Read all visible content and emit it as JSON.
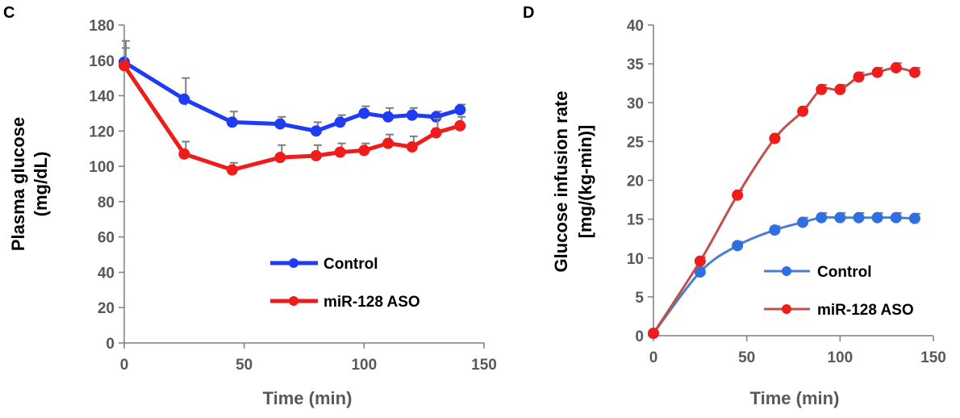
{
  "chart_data": [
    {
      "panel": "C",
      "type": "line",
      "ylabel": [
        "Plasma glucose",
        "(mg/dL)"
      ],
      "xlabel": "Time (min)",
      "xlim": [
        0,
        150
      ],
      "ylim": [
        0,
        180
      ],
      "x_ticks": [
        0,
        50,
        100,
        150
      ],
      "y_ticks": [
        0,
        20,
        40,
        60,
        80,
        100,
        120,
        140,
        160,
        180
      ],
      "legend_position": "center-right",
      "series": [
        {
          "name": "Control",
          "color": "#1f3cf5",
          "x": [
            0,
            25,
            45,
            65,
            80,
            90,
            100,
            110,
            120,
            130,
            140
          ],
          "y": [
            159,
            138,
            125,
            124,
            120,
            125,
            130,
            128,
            129,
            128,
            132
          ],
          "err": [
            12,
            12,
            6,
            4,
            5,
            4,
            4,
            5,
            4,
            3,
            3
          ]
        },
        {
          "name": "miR-128 ASO",
          "color": "#ef1c1c",
          "x": [
            0,
            25,
            45,
            65,
            80,
            90,
            100,
            110,
            120,
            130,
            140
          ],
          "y": [
            157,
            107,
            98,
            105,
            106,
            108,
            109,
            113,
            111,
            119,
            123
          ],
          "err": [
            10,
            7,
            4,
            7,
            6,
            5,
            4,
            5,
            6,
            8,
            5
          ]
        }
      ]
    },
    {
      "panel": "D",
      "type": "line",
      "ylabel": [
        "Glucose infusion rate",
        "[mg/(kg-min)]"
      ],
      "xlabel": "Time (min)",
      "xlim": [
        0,
        150
      ],
      "ylim": [
        0,
        40
      ],
      "x_ticks": [
        0,
        50,
        100,
        150
      ],
      "y_ticks": [
        0,
        5,
        10,
        15,
        20,
        25,
        30,
        35,
        40
      ],
      "legend_position": "bottom-right",
      "series": [
        {
          "name": "Control",
          "color": "#2f6fe0",
          "line_color": "#4a7fd0",
          "x": [
            0,
            25,
            45,
            65,
            80,
            90,
            100,
            110,
            120,
            130,
            140
          ],
          "y": [
            0.3,
            8.2,
            11.6,
            13.6,
            14.6,
            15.2,
            15.2,
            15.2,
            15.2,
            15.2,
            15.1
          ],
          "err": [
            0,
            0.6,
            0.5,
            0.5,
            0.6,
            0.6,
            0.6,
            0.6,
            0.6,
            0.6,
            0.6
          ]
        },
        {
          "name": "miR-128 ASO",
          "color": "#ef1c1c",
          "line_color": "#c0504d",
          "x": [
            0,
            25,
            45,
            65,
            80,
            90,
            100,
            110,
            120,
            130,
            140
          ],
          "y": [
            0.3,
            9.6,
            18.1,
            25.4,
            28.9,
            31.7,
            31.7,
            33.3,
            33.9,
            34.5,
            33.9
          ],
          "err": [
            0,
            0.5,
            0.6,
            0.6,
            0.6,
            0.6,
            0.6,
            0.6,
            0.6,
            0.6,
            0.6
          ]
        }
      ]
    }
  ]
}
